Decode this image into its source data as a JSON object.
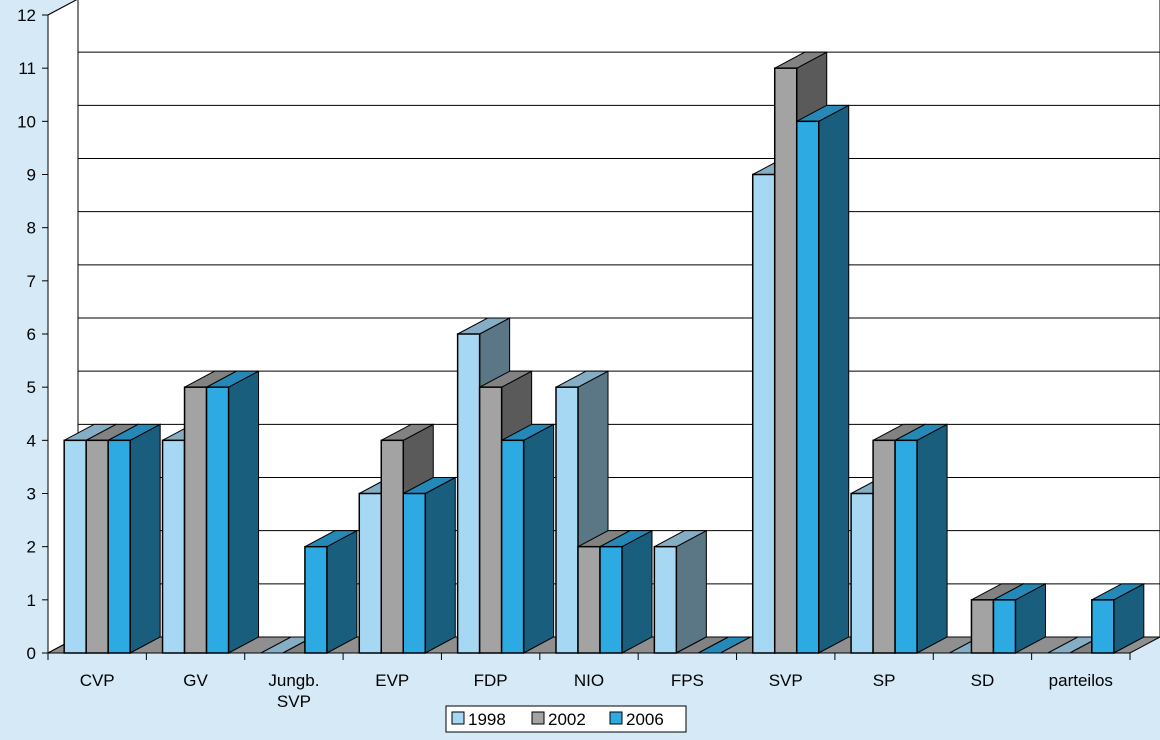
{
  "chart_data": {
    "type": "bar",
    "bar_style": "3d",
    "categories": [
      [
        "CVP"
      ],
      [
        "GV"
      ],
      [
        "Jungb.",
        "SVP"
      ],
      [
        "EVP"
      ],
      [
        "FDP"
      ],
      [
        "NIO"
      ],
      [
        "FPS"
      ],
      [
        "SVP"
      ],
      [
        "SP"
      ],
      [
        "SD"
      ],
      [
        "parteilos"
      ]
    ],
    "series": [
      {
        "name": "1998",
        "color": "#a6d8f4",
        "values": [
          4,
          4,
          0,
          3,
          6,
          5,
          2,
          9,
          3,
          0,
          0
        ]
      },
      {
        "name": "2002",
        "color": "#a3a3a3",
        "values": [
          4,
          5,
          0,
          4,
          5,
          2,
          0,
          11,
          4,
          1,
          0
        ]
      },
      {
        "name": "2006",
        "color": "#2eaae3",
        "values": [
          4,
          5,
          2,
          3,
          4,
          2,
          0,
          10,
          4,
          1,
          1
        ]
      }
    ],
    "y_ticks": [
      "0",
      "1",
      "2",
      "3",
      "4",
      "5",
      "6",
      "7",
      "8",
      "9",
      "10",
      "11",
      "12"
    ],
    "ylim": [
      0,
      12
    ],
    "grid": true,
    "legend_position": "bottom"
  }
}
